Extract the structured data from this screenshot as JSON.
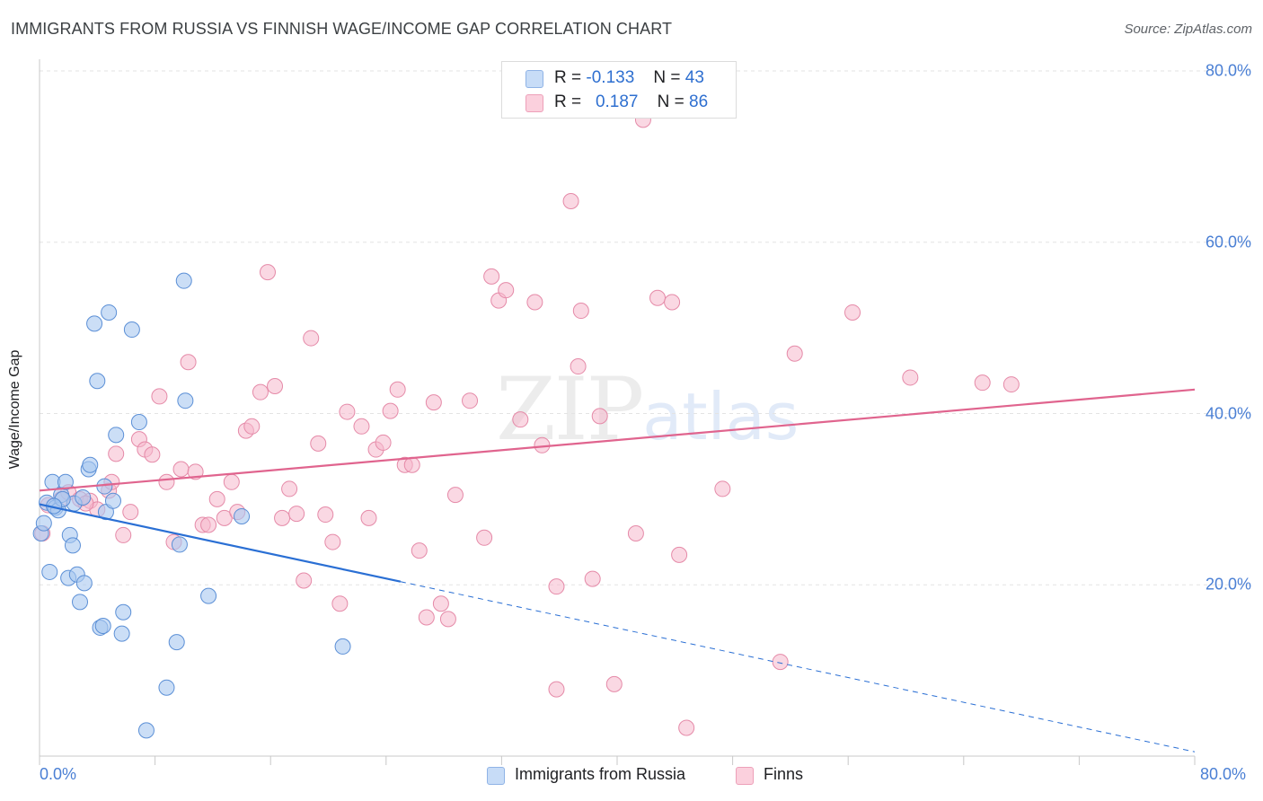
{
  "header": {
    "title": "IMMIGRANTS FROM RUSSIA VS FINNISH WAGE/INCOME GAP CORRELATION CHART",
    "source": "Source: ZipAtlas.com"
  },
  "watermark": {
    "zip": "ZIP",
    "atlas": "atlas"
  },
  "legend": {
    "rows": [
      {
        "r_label": "R =",
        "r_value": "-0.133",
        "n_label": "N =",
        "n_value": "43",
        "color": "#a8c8f0"
      },
      {
        "r_label": "R =",
        "r_value": "0.187",
        "n_label": "N =",
        "n_value": "86",
        "color": "#f6b8cc"
      }
    ]
  },
  "bottom_legend": {
    "series1": "Immigrants from Russia",
    "series2": "Finns"
  },
  "colors": {
    "russia_fill": "#a8c8f0",
    "russia_stroke": "#5b8fd6",
    "russia_line": "#2a6fd4",
    "finns_fill": "#f6b8cc",
    "finns_stroke": "#e58aa8",
    "finns_line": "#e0648e",
    "tick_text": "#4a7fd4",
    "grid": "#e3e3e3"
  },
  "chart_data": {
    "type": "scatter",
    "title": "IMMIGRANTS FROM RUSSIA VS FINNISH WAGE/INCOME GAP CORRELATION CHART",
    "xlabel": "",
    "ylabel": "Wage/Income Gap",
    "xlim": [
      0,
      80
    ],
    "ylim": [
      0,
      80
    ],
    "x_tick_labels": [
      "0.0%",
      "80.0%"
    ],
    "y_ticks": [
      20,
      40,
      60,
      80
    ],
    "y_tick_labels": [
      "20.0%",
      "40.0%",
      "60.0%",
      "80.0%"
    ],
    "series": [
      {
        "name": "Immigrants from Russia",
        "R": -0.133,
        "N": 43,
        "trend": {
          "x0": 0,
          "y0": 29.4,
          "x1": 80,
          "y1": 0.5,
          "solid_until": 25
        },
        "points": [
          [
            0.1,
            26.0
          ],
          [
            0.3,
            27.2
          ],
          [
            0.5,
            29.6
          ],
          [
            0.7,
            21.5
          ],
          [
            0.9,
            32.0
          ],
          [
            1.1,
            29.0
          ],
          [
            1.3,
            28.7
          ],
          [
            1.5,
            30.5
          ],
          [
            1.8,
            32.0
          ],
          [
            2.0,
            20.8
          ],
          [
            2.1,
            25.8
          ],
          [
            2.3,
            24.6
          ],
          [
            2.6,
            21.2
          ],
          [
            2.8,
            18.0
          ],
          [
            3.1,
            20.2
          ],
          [
            3.4,
            33.5
          ],
          [
            3.5,
            34.0
          ],
          [
            3.8,
            50.5
          ],
          [
            4.0,
            43.8
          ],
          [
            4.2,
            15.0
          ],
          [
            4.4,
            15.2
          ],
          [
            4.5,
            31.5
          ],
          [
            4.6,
            28.5
          ],
          [
            4.8,
            51.8
          ],
          [
            5.1,
            29.8
          ],
          [
            5.3,
            37.5
          ],
          [
            5.7,
            14.3
          ],
          [
            5.8,
            16.8
          ],
          [
            6.4,
            49.8
          ],
          [
            6.9,
            39.0
          ],
          [
            7.4,
            3.0
          ],
          [
            8.8,
            8.0
          ],
          [
            9.5,
            13.3
          ],
          [
            9.7,
            24.7
          ],
          [
            10.0,
            55.5
          ],
          [
            10.1,
            41.5
          ],
          [
            11.7,
            18.7
          ],
          [
            14.0,
            28.0
          ],
          [
            21.0,
            12.8
          ],
          [
            2.4,
            29.5
          ],
          [
            1.6,
            30.0
          ],
          [
            3.0,
            30.2
          ],
          [
            1.0,
            29.2
          ]
        ]
      },
      {
        "name": "Finns",
        "R": 0.187,
        "N": 86,
        "trend": {
          "x0": 0,
          "y0": 31.0,
          "x1": 80,
          "y1": 42.8
        },
        "points": [
          [
            0.2,
            26.0
          ],
          [
            1.5,
            30.0
          ],
          [
            2.0,
            30.8
          ],
          [
            2.8,
            30.0
          ],
          [
            3.5,
            29.8
          ],
          [
            4.0,
            28.8
          ],
          [
            4.8,
            31.0
          ],
          [
            5.0,
            32.0
          ],
          [
            5.3,
            35.3
          ],
          [
            5.8,
            25.8
          ],
          [
            6.3,
            28.5
          ],
          [
            6.9,
            37.0
          ],
          [
            7.3,
            35.8
          ],
          [
            7.8,
            35.2
          ],
          [
            8.3,
            42.0
          ],
          [
            8.8,
            32.0
          ],
          [
            9.3,
            25.0
          ],
          [
            9.8,
            33.5
          ],
          [
            10.3,
            46.0
          ],
          [
            10.8,
            33.2
          ],
          [
            11.3,
            27.0
          ],
          [
            11.7,
            27.0
          ],
          [
            12.3,
            30.0
          ],
          [
            12.8,
            27.8
          ],
          [
            13.3,
            32.0
          ],
          [
            13.7,
            28.5
          ],
          [
            14.3,
            38.0
          ],
          [
            14.7,
            38.5
          ],
          [
            15.3,
            42.5
          ],
          [
            15.8,
            56.5
          ],
          [
            16.3,
            43.2
          ],
          [
            16.8,
            27.8
          ],
          [
            17.3,
            31.2
          ],
          [
            17.8,
            28.3
          ],
          [
            18.3,
            20.5
          ],
          [
            18.8,
            48.8
          ],
          [
            19.3,
            36.5
          ],
          [
            19.8,
            28.2
          ],
          [
            20.3,
            25.0
          ],
          [
            20.8,
            17.8
          ],
          [
            21.3,
            40.2
          ],
          [
            22.3,
            38.5
          ],
          [
            22.8,
            27.8
          ],
          [
            23.3,
            35.8
          ],
          [
            23.8,
            36.6
          ],
          [
            24.3,
            40.3
          ],
          [
            24.8,
            42.8
          ],
          [
            25.3,
            34.0
          ],
          [
            25.8,
            34.0
          ],
          [
            26.3,
            24.0
          ],
          [
            26.8,
            16.2
          ],
          [
            27.3,
            41.3
          ],
          [
            27.8,
            17.8
          ],
          [
            28.3,
            16.0
          ],
          [
            28.8,
            30.5
          ],
          [
            29.8,
            41.5
          ],
          [
            30.8,
            25.5
          ],
          [
            31.3,
            56.0
          ],
          [
            31.8,
            53.2
          ],
          [
            32.3,
            54.4
          ],
          [
            33.3,
            39.3
          ],
          [
            34.3,
            53.0
          ],
          [
            34.8,
            36.3
          ],
          [
            35.8,
            7.8
          ],
          [
            35.8,
            19.8
          ],
          [
            36.8,
            64.8
          ],
          [
            37.3,
            45.5
          ],
          [
            37.5,
            52.0
          ],
          [
            38.3,
            20.7
          ],
          [
            38.8,
            39.7
          ],
          [
            39.8,
            8.4
          ],
          [
            41.3,
            26.0
          ],
          [
            41.8,
            74.3
          ],
          [
            42.8,
            53.5
          ],
          [
            43.8,
            53.0
          ],
          [
            44.3,
            23.5
          ],
          [
            44.8,
            3.3
          ],
          [
            47.3,
            31.2
          ],
          [
            51.3,
            11.0
          ],
          [
            52.3,
            47.0
          ],
          [
            56.3,
            51.8
          ],
          [
            60.3,
            44.2
          ],
          [
            65.3,
            43.6
          ],
          [
            67.3,
            43.4
          ],
          [
            0.6,
            29.3
          ],
          [
            3.2,
            29.5
          ]
        ]
      }
    ]
  }
}
